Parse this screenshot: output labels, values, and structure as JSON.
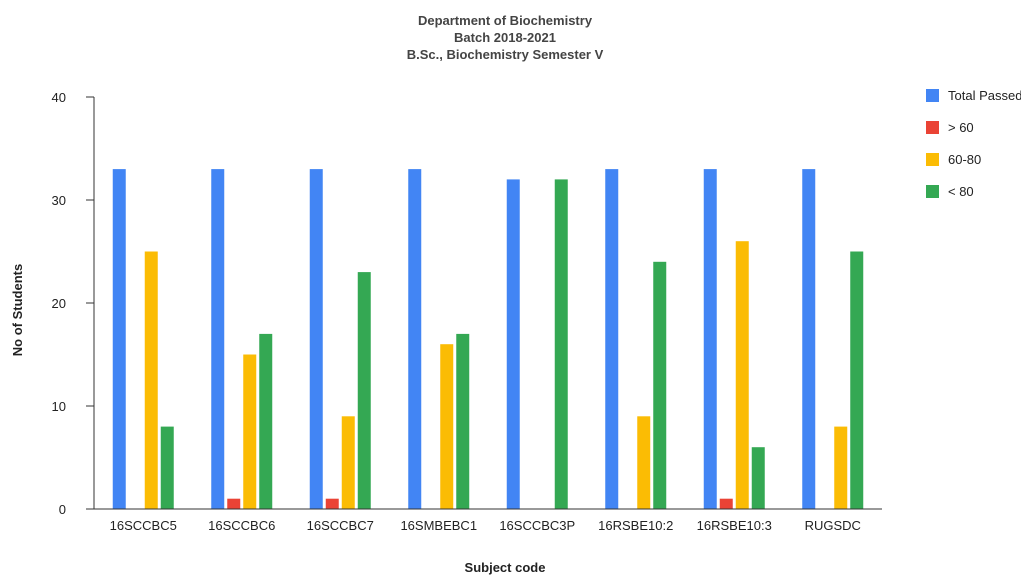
{
  "chart_data": {
    "type": "bar",
    "title": [
      "Department of Biochemistry",
      "Batch 2018-2021",
      "B.Sc., Biochemistry Semester V"
    ],
    "xlabel": "Subject code",
    "ylabel": "No of Students",
    "ylim": [
      0,
      40
    ],
    "yticks": [
      0,
      10,
      20,
      30,
      40
    ],
    "grid": false,
    "legend_position": "right",
    "categories": [
      "16SCCBC5",
      "16SCCBC6",
      "16SCCBC7",
      "16SMBEBC1",
      "16SCCBC3P",
      "16RSBE10:2",
      "16RSBE10:3",
      "RUGSDC"
    ],
    "series": [
      {
        "name": "Total Passed",
        "color": "#4285f4",
        "values": [
          33,
          33,
          33,
          33,
          32,
          33,
          33,
          33
        ]
      },
      {
        "name": "> 60",
        "color": "#ea4335",
        "values": [
          0,
          1,
          1,
          0,
          0,
          0,
          1,
          0
        ]
      },
      {
        "name": "60-80",
        "color": "#fbbc04",
        "values": [
          25,
          15,
          9,
          16,
          0,
          9,
          26,
          8
        ]
      },
      {
        "name": "< 80",
        "color": "#34a853",
        "values": [
          8,
          17,
          23,
          17,
          32,
          24,
          6,
          25
        ]
      }
    ]
  }
}
